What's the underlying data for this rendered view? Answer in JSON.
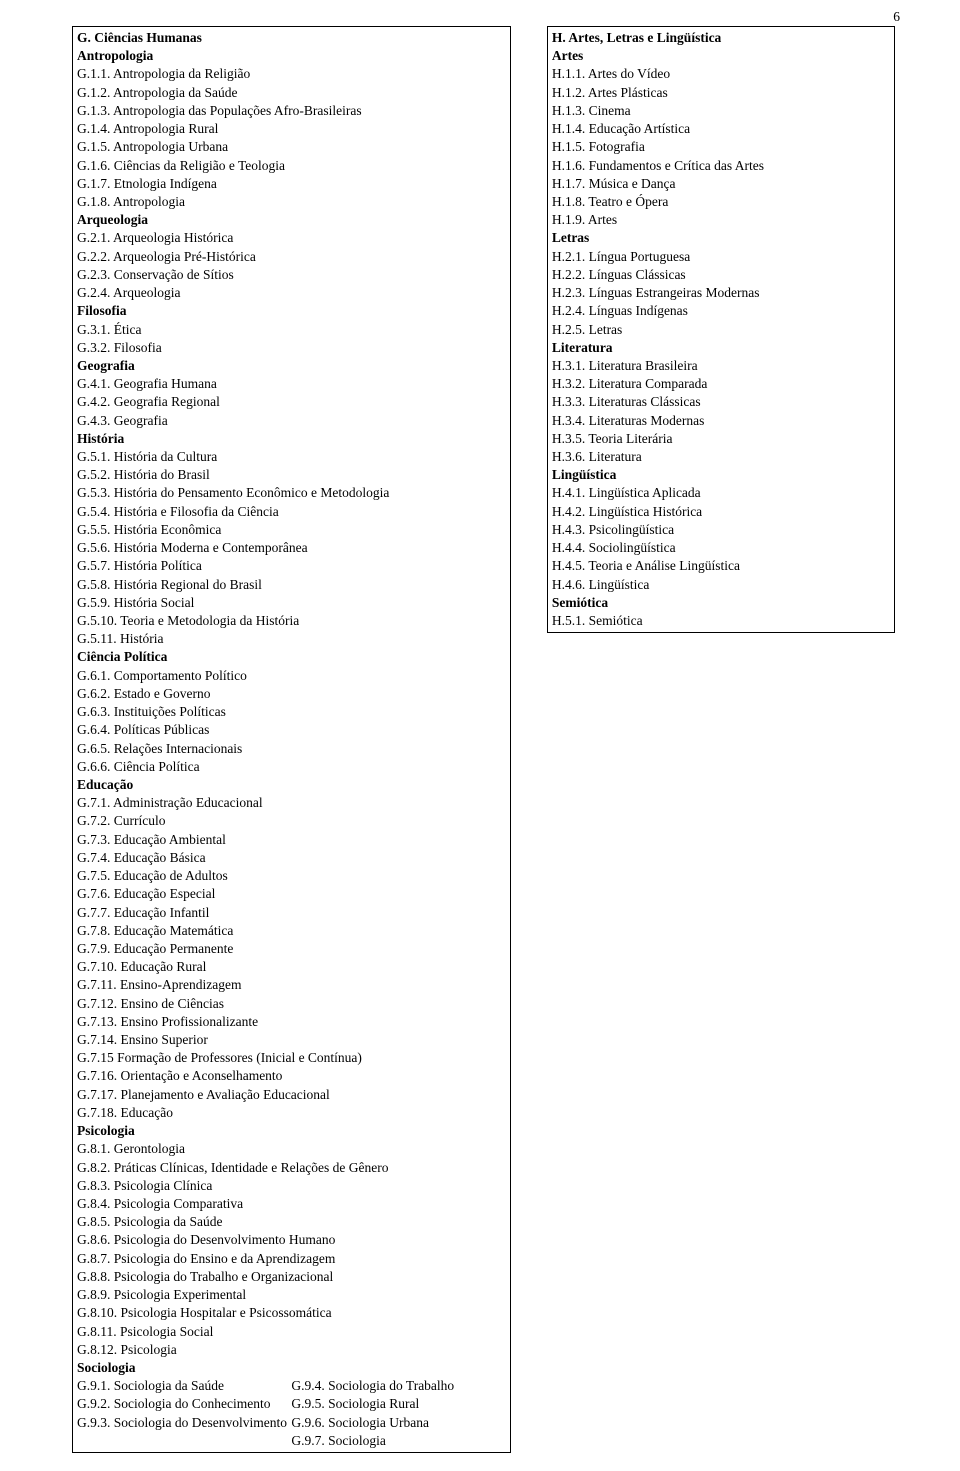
{
  "pageNumber": "6",
  "left": {
    "header": "G. Ciências Humanas",
    "groups": [
      {
        "title": "Antropologia",
        "items": [
          "G.1.1. Antropologia da Religião",
          "G.1.2. Antropologia da Saúde",
          "G.1.3. Antropologia das Populações Afro-Brasileiras",
          "G.1.4. Antropologia Rural",
          "G.1.5. Antropologia Urbana",
          "G.1.6. Ciências da Religião e Teologia",
          "G.1.7. Etnologia Indígena",
          "G.1.8. Antropologia"
        ]
      },
      {
        "title": "Arqueologia",
        "items": [
          "G.2.1. Arqueologia Histórica",
          "G.2.2. Arqueologia Pré-Histórica",
          "G.2.3. Conservação de Sítios",
          "G.2.4. Arqueologia"
        ]
      },
      {
        "title": "Filosofia",
        "items": [
          "G.3.1. Ética",
          "G.3.2. Filosofia"
        ]
      },
      {
        "title": "Geografia",
        "items": [
          "G.4.1. Geografia Humana",
          "G.4.2. Geografia Regional",
          "G.4.3. Geografia"
        ]
      },
      {
        "title": "História",
        "items": [
          "G.5.1. História da Cultura",
          "G.5.2. História do Brasil",
          "G.5.3. História do Pensamento Econômico e Metodologia",
          "G.5.4. História e Filosofia da Ciência",
          "G.5.5. História Econômica",
          "G.5.6. História Moderna e Contemporânea",
          "G.5.7. História Política",
          "G.5.8. História Regional do Brasil",
          "G.5.9. História Social",
          "G.5.10. Teoria e Metodologia da História",
          "G.5.11. História"
        ]
      },
      {
        "title": "Ciência Política",
        "items": [
          "G.6.1. Comportamento Político",
          "G.6.2. Estado e Governo",
          "G.6.3. Instituições Políticas",
          "G.6.4. Políticas Públicas",
          "G.6.5. Relações Internacionais",
          "G.6.6. Ciência Política"
        ]
      },
      {
        "title": "Educação",
        "items": [
          "G.7.1. Administração Educacional",
          "G.7.2. Currículo",
          "G.7.3. Educação Ambiental",
          "G.7.4. Educação Básica",
          "G.7.5. Educação de Adultos",
          "G.7.6. Educação Especial",
          "G.7.7. Educação Infantil",
          "G.7.8. Educação Matemática",
          "G.7.9. Educação Permanente",
          "G.7.10. Educação Rural",
          "G.7.11. Ensino-Aprendizagem",
          "G.7.12. Ensino de Ciências",
          "G.7.13. Ensino Profissionalizante",
          "G.7.14. Ensino Superior",
          "G.7.15 Formação de Professores (Inicial e Contínua)",
          "G.7.16. Orientação e Aconselhamento",
          "G.7.17. Planejamento e Avaliação Educacional",
          "G.7.18. Educação"
        ]
      },
      {
        "title": "Psicologia",
        "items": [
          "G.8.1. Gerontologia",
          "G.8.2. Práticas Clínicas, Identidade e Relações de Gênero",
          "G.8.3. Psicologia Clínica",
          "G.8.4. Psicologia Comparativa",
          "G.8.5. Psicologia da Saúde",
          "G.8.6. Psicologia do Desenvolvimento Humano",
          "G.8.7. Psicologia do Ensino e da Aprendizagem",
          "G.8.8. Psicologia do Trabalho e Organizacional",
          "G.8.9. Psicologia Experimental",
          "G.8.10. Psicologia Hospitalar e Psicossomática",
          "G.8.11. Psicologia Social",
          "G.8.12. Psicologia"
        ]
      }
    ],
    "sociologia": {
      "title": "Sociologia",
      "left": [
        "G.9.1. Sociologia da Saúde",
        "G.9.2. Sociologia do Conhecimento",
        "G.9.3. Sociologia do Desenvolvimento"
      ],
      "right": [
        "G.9.4. Sociologia do Trabalho",
        "G.9.5. Sociologia Rural",
        "G.9.6. Sociologia Urbana",
        "G.9.7. Sociologia"
      ]
    }
  },
  "right": {
    "header": "H. Artes, Letras e Lingüística",
    "groups": [
      {
        "title": "Artes",
        "items": [
          "H.1.1. Artes do Vídeo",
          "H.1.2. Artes Plásticas",
          "H.1.3. Cinema",
          "H.1.4. Educação Artística",
          "H.1.5. Fotografia",
          "H.1.6. Fundamentos e Crítica das Artes",
          "H.1.7. Música e Dança",
          "H.1.8. Teatro e Ópera",
          "H.1.9. Artes"
        ]
      },
      {
        "title": "Letras",
        "items": [
          "H.2.1. Língua Portuguesa",
          "H.2.2. Línguas Clássicas",
          "H.2.3. Línguas Estrangeiras Modernas",
          "H.2.4. Línguas Indígenas",
          "H.2.5. Letras"
        ]
      },
      {
        "title": "Literatura",
        "items": [
          "H.3.1. Literatura Brasileira",
          "H.3.2. Literatura Comparada",
          "H.3.3. Literaturas Clássicas",
          "H.3.4. Literaturas Modernas",
          "H.3.5. Teoria Literária",
          "H.3.6. Literatura"
        ]
      },
      {
        "title": "Lingüística",
        "items": [
          "H.4.1. Lingüística Aplicada",
          "H.4.2. Lingüística Histórica",
          "H.4.3. Psicolingüística",
          "H.4.4. Sociolingüística",
          "H.4.5. Teoria e Análise Lingüística",
          "H.4.6. Lingüística"
        ]
      },
      {
        "title": "Semiótica",
        "items": [
          "H.5.1. Semiótica"
        ]
      }
    ]
  }
}
